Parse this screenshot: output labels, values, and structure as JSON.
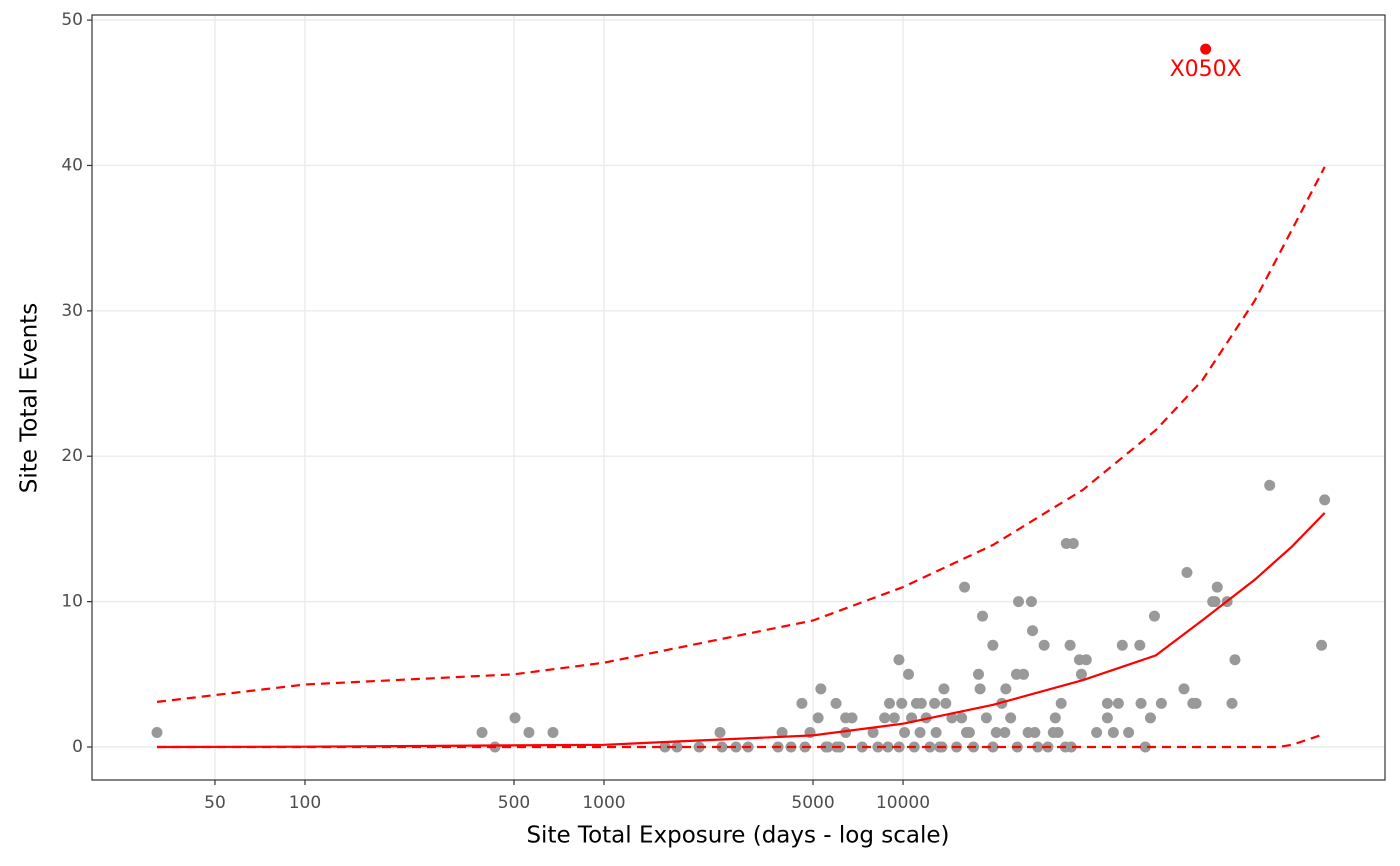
{
  "chart_data": {
    "type": "scatter",
    "x_label": "Site Total Exposure (days - log scale)",
    "y_label": "Site Total Events",
    "x_log": true,
    "grid": true,
    "xlim": [
      19.4,
      409000
    ],
    "ylim": [
      -2.27,
      50.35
    ],
    "xticks": [
      50,
      100,
      500,
      1000,
      5000,
      10000
    ],
    "yticks": [
      0,
      10,
      20,
      30,
      40,
      50
    ],
    "points": {
      "color": "#999999",
      "x": [
        32,
        391,
        432,
        504,
        561,
        675,
        1600,
        1754,
        2080,
        2443,
        2480,
        2763,
        3033,
        3819,
        3940,
        4220,
        4590,
        4700,
        4886,
        5200,
        5310,
        5525,
        5970,
        6150,
        6430,
        6430,
        6750,
        7300,
        7940,
        8240,
        8680,
        9010,
        9350,
        9690,
        9900,
        10120,
        10430,
        10680,
        11090,
        11510,
        11950,
        12750,
        13270,
        13700,
        13900,
        14570,
        15700,
        16060,
        16670,
        17880,
        18100,
        18440,
        19000,
        19970,
        19970,
        21400,
        22070,
        22900,
        23950,
        24330,
        25290,
        26870,
        27100,
        27600,
        29640,
        30500,
        32300,
        33800,
        35160,
        37100,
        36200,
        38900,
        41000,
        39500,
        44400,
        48240,
        48240,
        50500,
        52500,
        54100,
        56800,
        61900,
        62500,
        64600,
        67200,
        69300,
        73100,
        87000,
        89000,
        93100,
        95500,
        108500,
        112400,
        110500,
        121300,
        125900,
        128800,
        168300,
        251000,
        257000,
        5600,
        6000,
        8900,
        9700,
        10900,
        12300,
        13500,
        15100,
        17200,
        20500,
        24100,
        28200,
        31800,
        34900,
        36500,
        11400,
        12900,
        16300,
        21900,
        26200,
        33000
      ],
      "values": [
        1,
        1,
        0,
        2,
        1,
        1,
        0,
        0,
        0,
        1,
        0,
        0,
        0,
        0,
        1,
        0,
        3,
        0,
        1,
        2,
        4,
        0,
        3,
        0,
        2,
        1,
        2,
        0,
        1,
        0,
        2,
        3,
        2,
        6,
        3,
        1,
        5,
        2,
        3,
        3,
        2,
        3,
        0,
        4,
        3,
        2,
        2,
        11,
        1,
        5,
        4,
        9,
        2,
        7,
        0,
        3,
        4,
        2,
        5,
        10,
        5,
        10,
        8,
        1,
        7,
        0,
        2,
        3,
        14,
        14,
        7,
        6,
        6,
        5,
        1,
        3,
        2,
        1,
        3,
        7,
        1,
        7,
        3,
        0,
        2,
        9,
        3,
        4,
        12,
        3,
        3,
        10,
        11,
        10,
        10,
        3,
        6,
        18,
        7,
        17,
        0,
        0,
        0,
        0,
        0,
        0,
        0,
        0,
        0,
        1,
        0,
        0,
        1,
        0,
        0,
        1,
        1,
        1,
        1,
        1,
        1
      ]
    },
    "highlight": {
      "color": "#ff0000",
      "x": [
        102800
      ],
      "values": [
        48
      ],
      "label": "X050X"
    },
    "lines": [
      {
        "color": "#ff0000",
        "dash": false,
        "x": [
          32,
          100,
          1000,
          5000,
          10000,
          20000,
          40000,
          70000,
          100000,
          150000,
          200000,
          257000
        ],
        "values": [
          0,
          0.02,
          0.15,
          0.8,
          1.6,
          2.9,
          4.6,
          6.3,
          8.7,
          11.5,
          13.8,
          16.1
        ]
      },
      {
        "color": "#ff0000",
        "dash": true,
        "x": [
          32,
          100,
          500,
          1000,
          5000,
          10000,
          20000,
          40000,
          70000,
          100000,
          150000,
          200000,
          257000
        ],
        "values": [
          3.1,
          4.3,
          5.0,
          5.8,
          8.7,
          11.0,
          13.9,
          17.7,
          21.8,
          25.2,
          30.7,
          35.6,
          39.9
        ]
      },
      {
        "color": "#ff0000",
        "dash": true,
        "x": [
          32,
          1000,
          10000,
          100000,
          180000,
          200000,
          257000
        ],
        "values": [
          0,
          0,
          0,
          0,
          0,
          0.15,
          0.9
        ]
      }
    ]
  }
}
